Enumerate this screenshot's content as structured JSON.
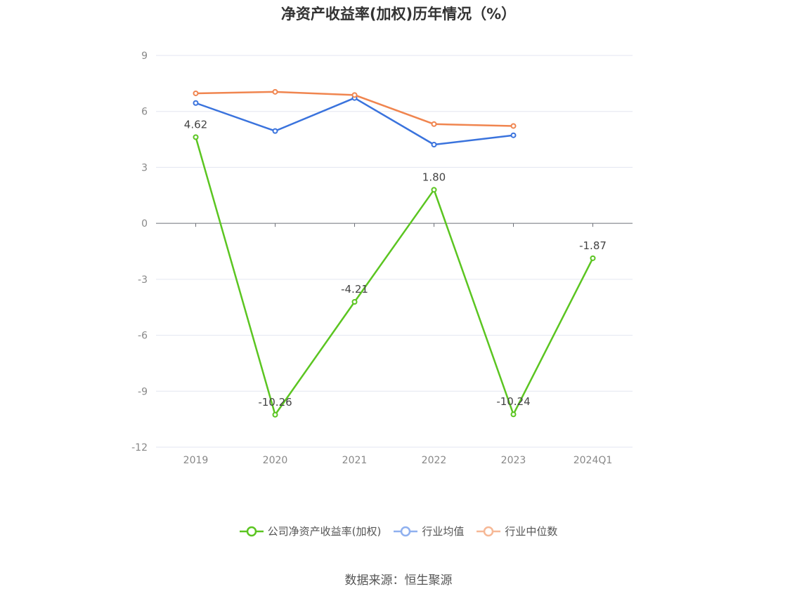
{
  "title": "净资产收益率(加权)历年情况（%）",
  "source_note": "数据来源：恒生聚源",
  "chart_data": {
    "type": "line",
    "title": "净资产收益率(加权)历年情况（%）",
    "categories": [
      "2019",
      "2020",
      "2021",
      "2022",
      "2023",
      "2024Q1"
    ],
    "ylim": [
      -12,
      9
    ],
    "yticks": [
      9,
      6,
      3,
      0,
      -3,
      -6,
      -9,
      -12
    ],
    "grid": true,
    "legend_position": "bottom",
    "series": [
      {
        "name": "公司净资产收益率(加权)",
        "color": "#5bc521",
        "values": [
          4.62,
          -10.26,
          -4.21,
          1.8,
          -10.24,
          -1.87
        ],
        "labels": [
          "4.62",
          "-10.26",
          "-4.21",
          "1.80",
          "-10.24",
          "-1.87"
        ]
      },
      {
        "name": "行业均值",
        "color": "#3a73dd",
        "legend_color": "#8fb0ef",
        "values": [
          6.45,
          4.95,
          6.72,
          4.22,
          4.72,
          null
        ]
      },
      {
        "name": "行业中位数",
        "color": "#f0854f",
        "legend_color": "#f6b896",
        "values": [
          6.97,
          7.05,
          6.88,
          5.32,
          5.22,
          null
        ]
      }
    ]
  }
}
